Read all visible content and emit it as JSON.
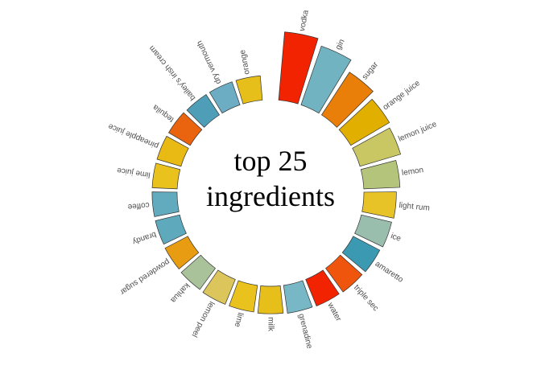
{
  "chart_data": {
    "type": "bar",
    "layout_kind": "circular",
    "title_lines": [
      "top 25",
      "ingredients"
    ],
    "grid": false,
    "legend": "none",
    "bars": [
      {
        "label": "vodka",
        "value": 1.0,
        "color": "#F22300"
      },
      {
        "label": "gin",
        "value": 0.9,
        "color": "#72B3C1"
      },
      {
        "label": "sugar",
        "value": 0.72,
        "color": "#E97E08"
      },
      {
        "label": "orange juice",
        "value": 0.62,
        "color": "#E1AF00"
      },
      {
        "label": "lemon juice",
        "value": 0.58,
        "color": "#C8C763"
      },
      {
        "label": "lemon",
        "value": 0.48,
        "color": "#B5C47B"
      },
      {
        "label": "light rum",
        "value": 0.42,
        "color": "#E8C328"
      },
      {
        "label": "ice",
        "value": 0.4,
        "color": "#99BEAE"
      },
      {
        "label": "amaretto",
        "value": 0.38,
        "color": "#3B9AB2"
      },
      {
        "label": "triple sec",
        "value": 0.37,
        "color": "#F0550E"
      },
      {
        "label": "water",
        "value": 0.36,
        "color": "#F22300"
      },
      {
        "label": "grenadine",
        "value": 0.35,
        "color": "#78B7C5"
      },
      {
        "label": "milk",
        "value": 0.34,
        "color": "#E6BF1A"
      },
      {
        "label": "lime",
        "value": 0.33,
        "color": "#E9C21E"
      },
      {
        "label": "lemon peel",
        "value": 0.33,
        "color": "#DCC55A"
      },
      {
        "label": "kahlua",
        "value": 0.32,
        "color": "#A9C29A"
      },
      {
        "label": "powdered sugar",
        "value": 0.31,
        "color": "#E79C11"
      },
      {
        "label": "brandy",
        "value": 0.3,
        "color": "#5FA9BD"
      },
      {
        "label": "coffee",
        "value": 0.3,
        "color": "#62ABBE"
      },
      {
        "label": "lime juice",
        "value": 0.3,
        "color": "#E9C21E"
      },
      {
        "label": "pineapple juice",
        "value": 0.3,
        "color": "#E8BA13"
      },
      {
        "label": "tequila",
        "value": 0.3,
        "color": "#EA6410"
      },
      {
        "label": "bailey's irish cream",
        "value": 0.29,
        "color": "#4E9EB8"
      },
      {
        "label": "dry vermouth",
        "value": 0.29,
        "color": "#6CADC4"
      },
      {
        "label": "orange",
        "value": 0.29,
        "color": "#E6BF1A"
      }
    ]
  }
}
